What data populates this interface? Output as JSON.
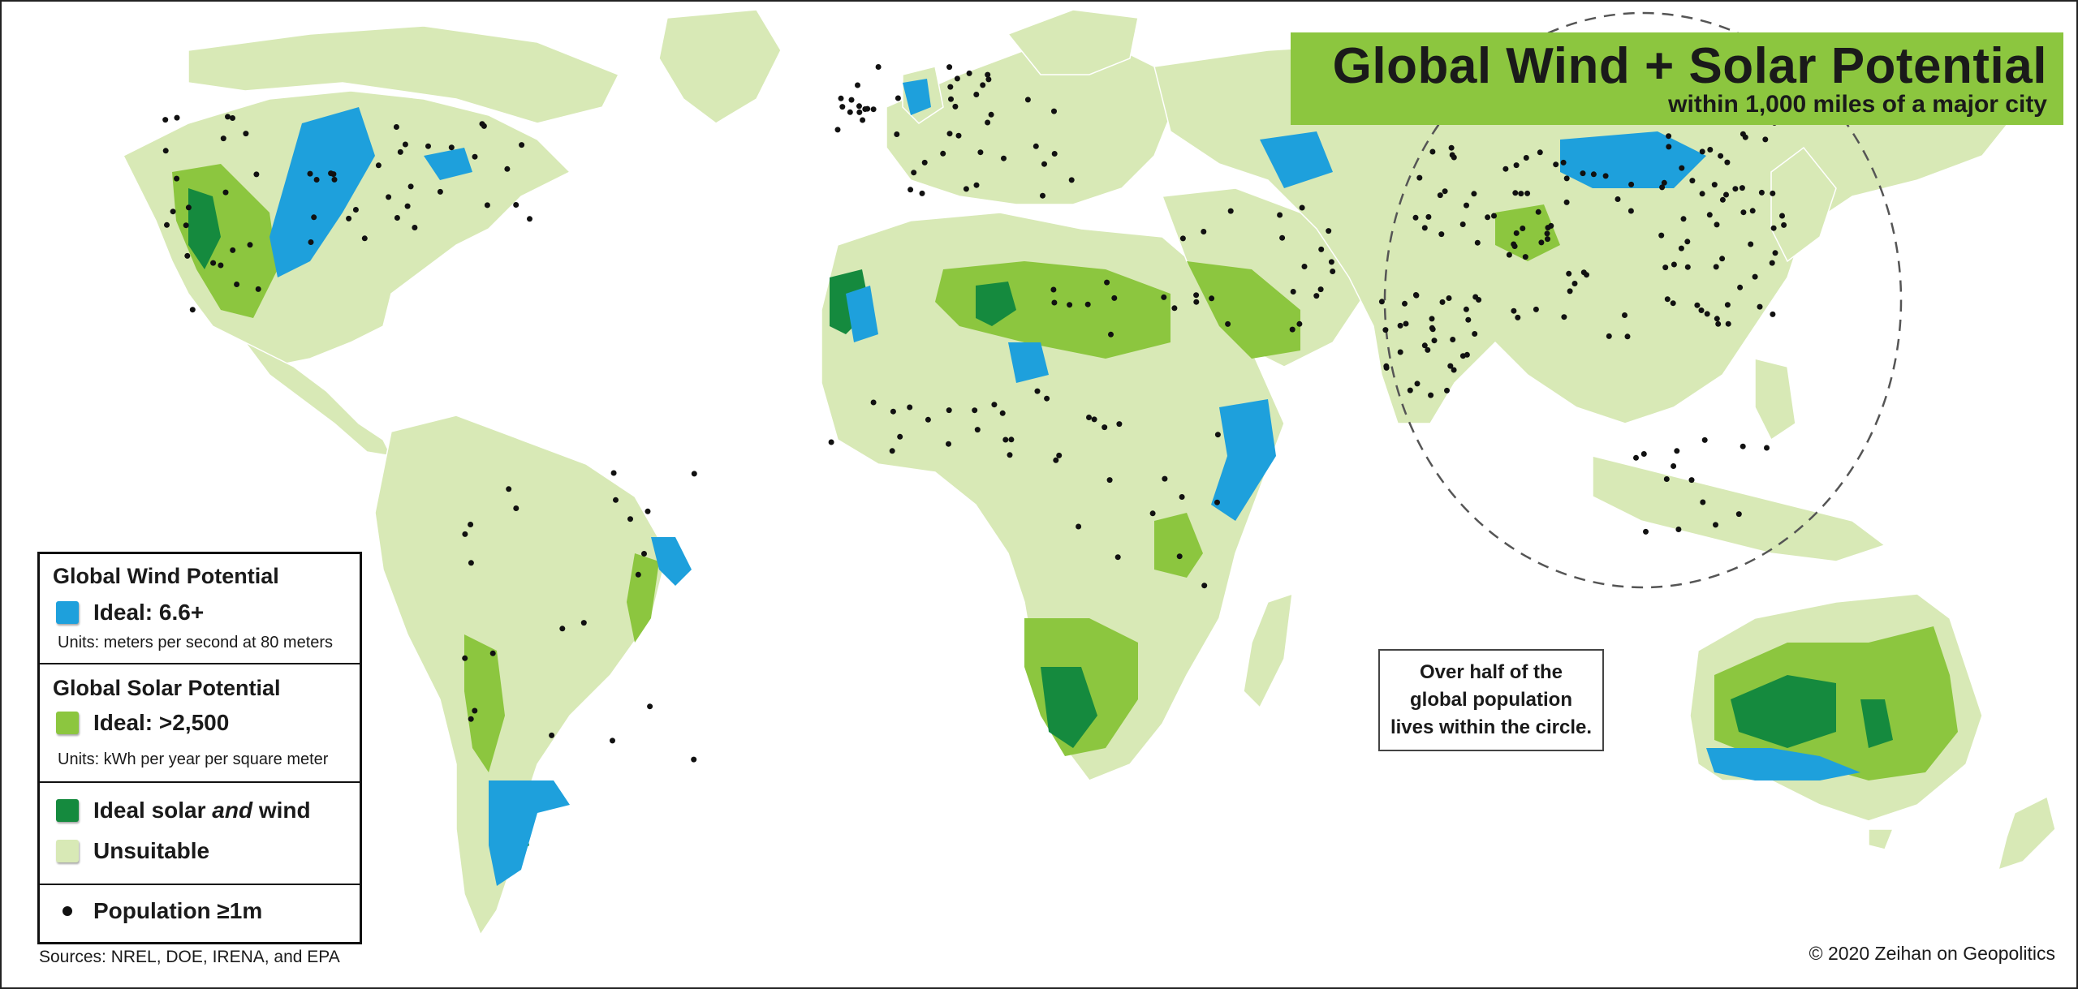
{
  "title": "Global Wind + Solar Potential",
  "subtitle": "within 1,000 miles of a major city",
  "colors": {
    "ocean": "#ffffff",
    "unsuitable": "#d8e9b6",
    "solar": "#8cc63f",
    "wind": "#1ea0dc",
    "solar_and_wind": "#158a3e",
    "population": "#111111",
    "title_bar": "#8cc63f"
  },
  "legend": {
    "wind": {
      "heading": "Global Wind Potential",
      "label": "Ideal: 6.6+",
      "units": "Units: meters per second at 80 meters"
    },
    "solar": {
      "heading": "Global Solar Potential",
      "label": "Ideal: >2,500",
      "units": "Units: kWh per year per square meter"
    },
    "both_label_pre": "Ideal solar ",
    "both_label_em": "and",
    "both_label_post": " wind",
    "unsuitable_label": "Unsuitable",
    "population_label": "Population ≥1m"
  },
  "note": {
    "line1": "Over half of the",
    "line2": "global population",
    "line3": "lives within the circle."
  },
  "sources": "Sources: NREL, DOE, IRENA, and EPA",
  "copyright": "© 2020 Zeihan on Geopolitics"
}
